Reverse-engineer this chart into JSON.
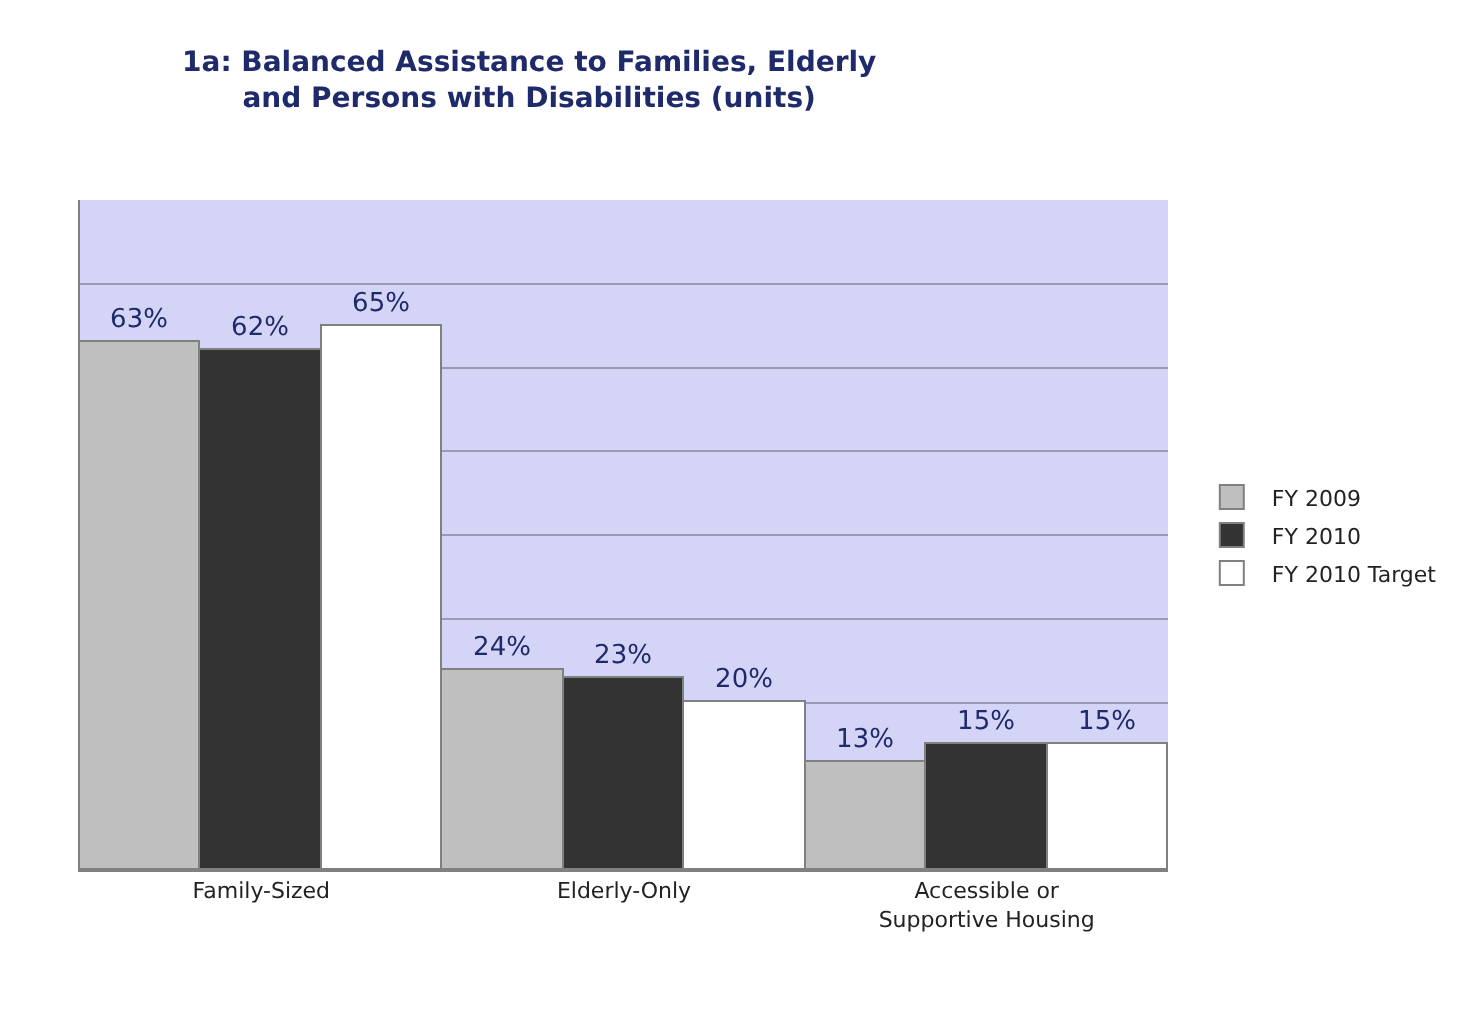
{
  "chart_data": {
    "type": "bar",
    "title": "1a: Balanced Assistance to Families, Elderly and Persons with Disabilities (units)",
    "categories": [
      "Family-Sized",
      "Elderly-Only",
      "Accessible or Supportive Housing"
    ],
    "series": [
      {
        "name": "FY 2009",
        "color": "#bfbfbf",
        "values": [
          63,
          24,
          13
        ],
        "value_labels": [
          "63%",
          "24%",
          "13%"
        ]
      },
      {
        "name": "FY 2010",
        "color": "#333333",
        "values": [
          62,
          23,
          15
        ],
        "value_labels": [
          "62%",
          "23%",
          "15%"
        ]
      },
      {
        "name": "FY 2010 Target",
        "color": "#ffffff",
        "values": [
          65,
          20,
          15
        ],
        "value_labels": [
          "65%",
          "20%",
          "15%"
        ]
      }
    ],
    "ylim": [
      0,
      80
    ],
    "tick_labels": "x",
    "grid": "y",
    "legend": "right"
  }
}
